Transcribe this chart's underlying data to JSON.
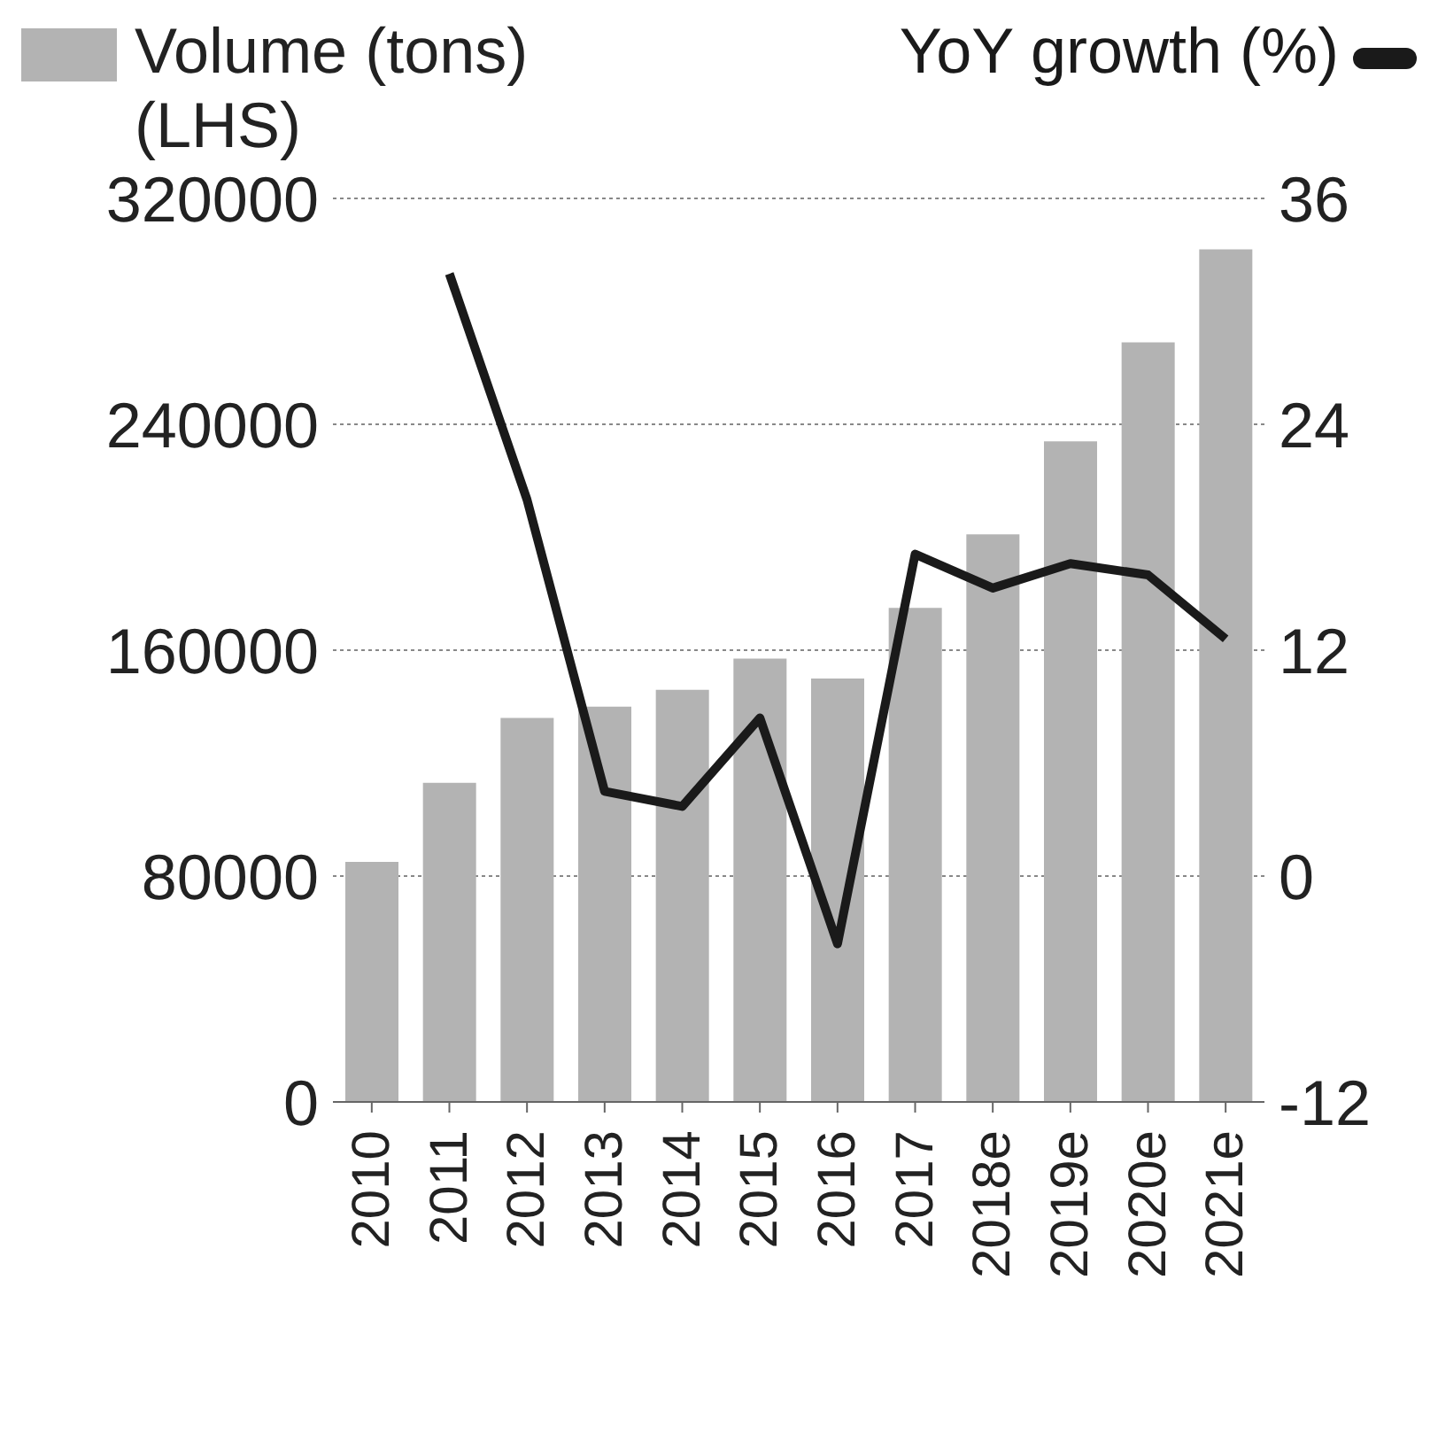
{
  "chart_data": {
    "type": "bar",
    "categories": [
      "2010",
      "2011",
      "2012",
      "2013",
      "2014",
      "2015",
      "2016",
      "2017",
      "2018e",
      "2019e",
      "2020e",
      "2021e"
    ],
    "series": [
      {
        "name": "Volume (tons) (LHS)",
        "color": "#b3b3b3",
        "values": [
          85000,
          113000,
          136000,
          140000,
          146000,
          157000,
          150000,
          175000,
          201000,
          234000,
          269000,
          302000
        ]
      },
      {
        "name": "YoY growth (%)",
        "type": "line",
        "axis": "y2",
        "color": "#1a1a1a",
        "values": [
          null,
          32,
          20,
          4.5,
          3.7,
          8.4,
          -3.6,
          17.1,
          15.3,
          16.6,
          16,
          12.6
        ]
      }
    ],
    "ylim": [
      0,
      320000
    ],
    "yticks": [
      0,
      80000,
      160000,
      240000,
      320000
    ],
    "y2lim": [
      -12,
      36
    ],
    "y2ticks": [
      -12,
      0,
      12,
      24,
      36
    ],
    "grid": "y",
    "legend": "top",
    "marker": "none",
    "line_style": "solid"
  }
}
